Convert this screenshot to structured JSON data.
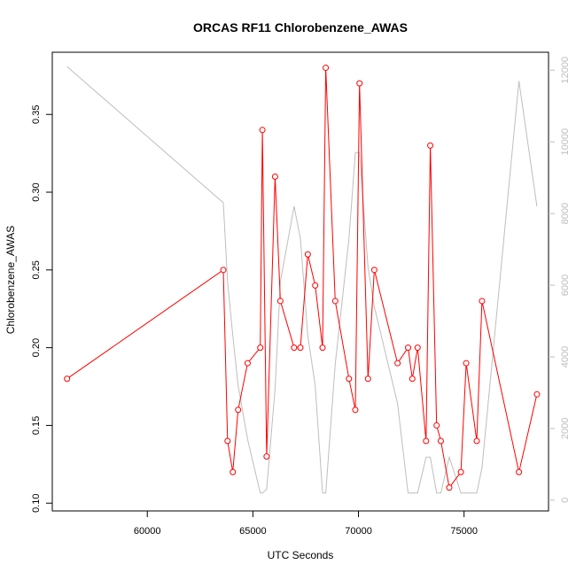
{
  "chart_data": {
    "type": "line",
    "title": "ORCAS RF11 Chlorobenzene_AWAS",
    "xlabel": "UTC Seconds",
    "ylabel": "Chlorobenzene_AWAS",
    "xlim": [
      55500,
      79000
    ],
    "ylim": [
      0.095,
      0.39
    ],
    "y2lim": [
      -300,
      12500
    ],
    "xticks": [
      60000,
      65000,
      70000,
      75000
    ],
    "xtick_labels": [
      "60000",
      "65000",
      "70000",
      "75000"
    ],
    "yticks": [
      0.1,
      0.15,
      0.2,
      0.25,
      0.3,
      0.35
    ],
    "ytick_labels": [
      "0.10",
      "0.15",
      "0.20",
      "0.25",
      "0.30",
      "0.35"
    ],
    "y2ticks": [
      0,
      2000,
      4000,
      6000,
      8000,
      10000,
      12000
    ],
    "y2tick_labels": [
      "0",
      "2000",
      "4000",
      "6000",
      "8000",
      "10000",
      "12000"
    ],
    "grid": false,
    "series": [
      {
        "color": "#ff0000",
        "axis": "left",
        "markers": true,
        "x": [
          56200,
          63600,
          63800,
          64050,
          64300,
          64750,
          65350,
          65450,
          65650,
          66050,
          66300,
          66950,
          67250,
          67600,
          67950,
          68300,
          68450,
          68900,
          69550,
          69850,
          70050,
          70450,
          70750,
          71850,
          72350,
          72550,
          72800,
          73200,
          73400,
          73700,
          73900,
          74300,
          74850,
          75100,
          75600,
          75850,
          77600,
          78450
        ],
        "y": [
          0.18,
          0.25,
          0.14,
          0.12,
          0.16,
          0.19,
          0.2,
          0.34,
          0.13,
          0.31,
          0.23,
          0.2,
          0.2,
          0.26,
          0.24,
          0.2,
          0.38,
          0.23,
          0.18,
          0.16,
          0.37,
          0.18,
          0.25,
          0.19,
          0.2,
          0.18,
          0.2,
          0.14,
          0.33,
          0.15,
          0.14,
          0.11,
          0.12,
          0.19,
          0.14,
          0.23,
          0.12,
          0.17
        ]
      },
      {
        "color": "#bebebe",
        "axis": "right",
        "markers": false,
        "x": [
          56200,
          63600,
          63800,
          64050,
          64300,
          64750,
          65350,
          65450,
          65650,
          66050,
          66300,
          66950,
          67250,
          67600,
          67950,
          68300,
          68450,
          68900,
          69550,
          69850,
          70050,
          70450,
          70750,
          71850,
          72350,
          72550,
          72800,
          73200,
          73400,
          73700,
          73900,
          74300,
          74850,
          75100,
          75600,
          75850,
          77600,
          78450
        ],
        "y": [
          12100,
          8300,
          6100,
          4600,
          3200,
          1700,
          200,
          200,
          300,
          3100,
          6100,
          8200,
          7300,
          4600,
          3200,
          200,
          200,
          3800,
          7300,
          9700,
          9700,
          6500,
          5400,
          2700,
          200,
          200,
          200,
          1200,
          1200,
          200,
          200,
          1200,
          200,
          200,
          200,
          900,
          11700,
          8200
        ]
      }
    ]
  }
}
